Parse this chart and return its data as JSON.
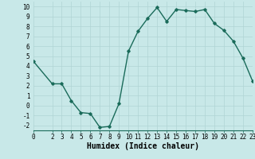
{
  "x": [
    0,
    2,
    3,
    4,
    5,
    6,
    7,
    8,
    9,
    10,
    11,
    12,
    13,
    14,
    15,
    16,
    17,
    18,
    19,
    20,
    21,
    22,
    23
  ],
  "y": [
    4.5,
    2.2,
    2.2,
    0.5,
    -0.7,
    -0.8,
    -2.2,
    -2.1,
    0.2,
    5.5,
    7.5,
    8.8,
    9.9,
    8.5,
    9.7,
    9.6,
    9.5,
    9.7,
    8.3,
    7.6,
    6.5,
    4.8,
    2.5
  ],
  "line_color": "#1a6b5a",
  "bg_color": "#c8e8e8",
  "grid_color": "#b0d4d4",
  "xlabel": "Humidex (Indice chaleur)",
  "xlim": [
    0,
    23
  ],
  "ylim": [
    -2.5,
    10.5
  ],
  "xticks": [
    0,
    2,
    3,
    4,
    5,
    6,
    7,
    8,
    9,
    10,
    11,
    12,
    13,
    14,
    15,
    16,
    17,
    18,
    19,
    20,
    21,
    22,
    23
  ],
  "yticks": [
    -2,
    -1,
    0,
    1,
    2,
    3,
    4,
    5,
    6,
    7,
    8,
    9,
    10
  ],
  "marker": "D",
  "marker_size": 1.8,
  "line_width": 1.0,
  "xlabel_fontsize": 7,
  "tick_fontsize": 5.5
}
